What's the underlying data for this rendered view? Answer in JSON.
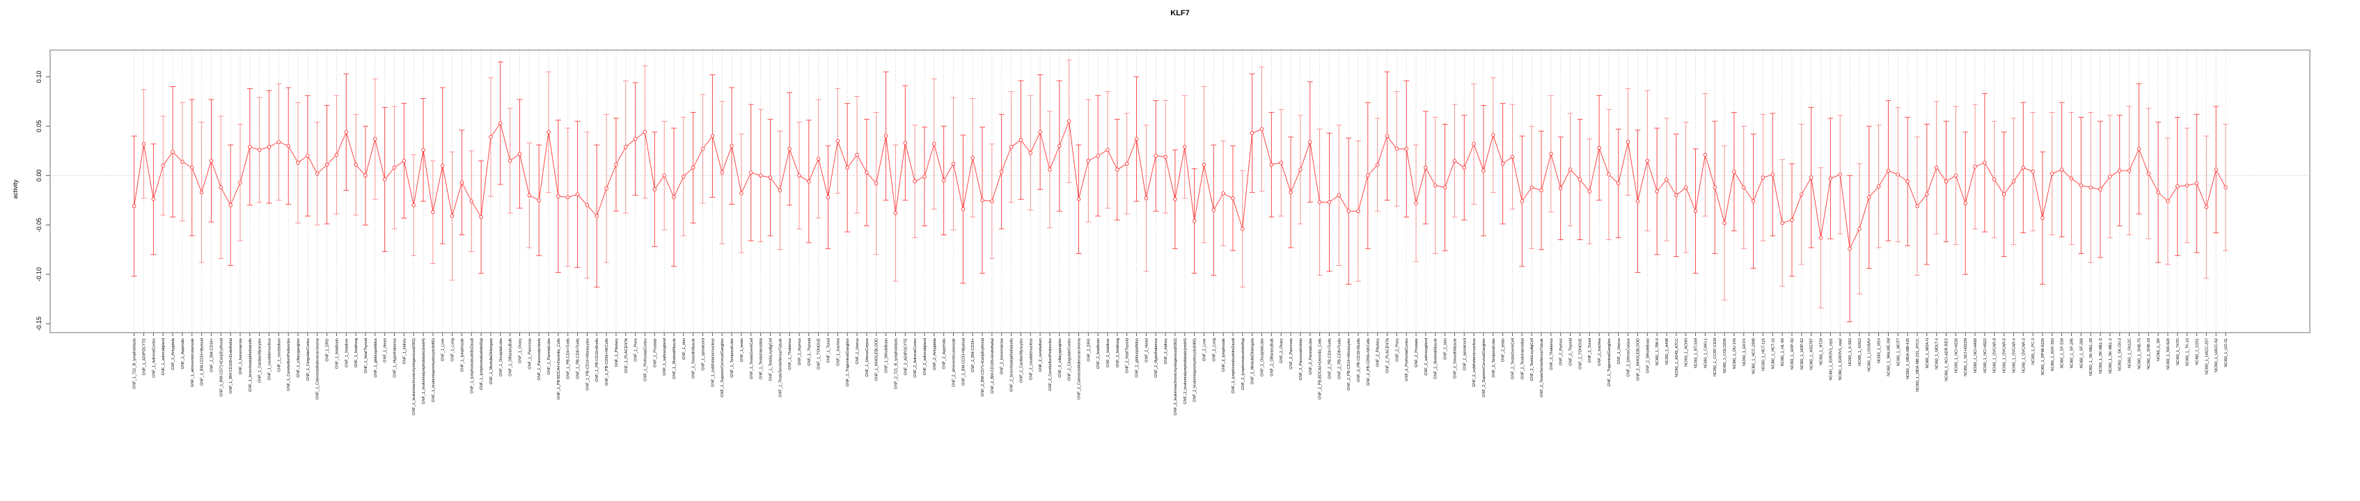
{
  "chart_data": {
    "type": "line",
    "title": "KLF7",
    "xlabel": "",
    "ylabel": "activity",
    "ylim": [
      -0.159,
      0.127
    ],
    "yticks": [
      "-0.15",
      "-0.10",
      "-0.05",
      "0.00",
      "0.05",
      "0.10"
    ],
    "ytick_values": [
      -0.15,
      -0.1,
      -0.05,
      0.0,
      0.05,
      0.1
    ],
    "grid": true,
    "color": "#ff3333",
    "categories": [
      "GNF_1_721_B_lymphoblasts",
      "GNF_1_ADIPOCYTE",
      "GNF_1_AdrenalCortex",
      "GNF_1_adrenalgland",
      "GNF_1_Amygdala",
      "GNF_1_Appendix",
      "GNF_1_atrioventricularnode",
      "GNF_1_BM-CD33+Myeloid",
      "GNF_1_BM-CD34+",
      "GNF_1_BM-CD71+EarlyErythroid",
      "GNF_1_BM-CD105+Endothelial",
      "GNF_1_bonemarrow",
      "GNF_1_bronchialepithelialcells",
      "GNF_1_CardiacMyocytes",
      "GNF_1_caudatenucleus",
      "GNF_1_cerebellum",
      "GNF_1_CerebellumPeduncles",
      "GNF_1_ciliaryganglion",
      "GNF_1_CingulateCortex",
      "GNF_1_ColorectalAdenocarcinoma",
      "GNF_1_DRG",
      "GNF_1_fetalbrain",
      "GNF_1_fetalliver",
      "GNF_1_fetallung",
      "GNF_1_fetalThyroid",
      "GNF_1_globuspallidus",
      "GNF_1_Heart",
      "GNF_1_Hypothalamus",
      "GNF_1_kidney",
      "GNF_1_leukemiachronicmyelogenous(k562)",
      "GNF_1_leukemialymphoblastic(molt4)",
      "GNF_1_leukemiapromyelocytic(hl60)",
      "GNF_1_Liver",
      "GNF_1_Lung",
      "GNF_1_lymphnode",
      "GNF_1_lymphomaburkittsDaudi",
      "GNF_1_lymphomaburkittsRaji",
      "GNF_1_MedullaOblongata",
      "GNF_1_OccipitalLobe",
      "GNF_1_OlfactoryBulb",
      "GNF_1_Ovary",
      "GNF_1_Pancreas",
      "GNF_1_PancreaticIslets",
      "GNF_1_ParietalLobe",
      "GNF_1_PB-BDCA4+Dentritic_Cells",
      "GNF_1_PB-CD4+Tcells",
      "GNF_1_PB-CD8+Tcells",
      "GNF_1_PB-CD14+Monocytes",
      "GNF_1_PB-CD19+Bcells",
      "GNF_1_PB-CD56+NKCells",
      "GNF_1_Pituitary",
      "GNF_1_PLACENTA",
      "GNF_1_Pons",
      "GNF_1_PrefrontalCortex",
      "GNF_1_Prostate",
      "GNF_1_salivarygland",
      "GNF_1_SkeletalMuscle",
      "GNF_1_skin",
      "GNF_1_SmoothMuscle",
      "GNF_1_spinalcord",
      "GNF_1_subthalamicnucleus",
      "GNF_1_SuperiorCervicalGanglion",
      "GNF_1_TemporalLobe",
      "GNF_1_testis",
      "GNF_1_TestisGermCell",
      "GNF_1_TestisInterstitial",
      "GNF_1_TestisLeydigCell",
      "GNF_1_TestisSeminiferousTubule",
      "GNF_1_Thalamus",
      "GNF_1_thymus",
      "GNF_1_Thyroid",
      "GNF_1_TONGUE",
      "GNF_1_Tonsil",
      "GNF_1_trachea",
      "GNF_1_TrigeminalGanglion",
      "GNF_1_Uterus",
      "GNF_1_UterusCorpus",
      "GNF_1_WHOLEBLOOD",
      "GNF_1_WholeBrain",
      "GNF_2_721_B_lymphoblasts",
      "GNF_2_ADIPOCYTE",
      "GNF_2_AdrenalCortex",
      "GNF_2_adrenalgland",
      "GNF_2_Amygdala",
      "GNF_2_Appendix",
      "GNF_2_atrioventricularnode",
      "GNF_2_BM-CD33+Myeloid",
      "GNF_2_BM-CD34+",
      "GNF_2_BM-CD71+EarlyErythroid",
      "GNF_2_BM-CD105+Endothelial",
      "GNF_2_bonemarrow",
      "GNF_2_bronchialepithelialcells",
      "GNF_2_CardiacMyocytes",
      "GNF_2_caudatenucleus",
      "GNF_2_cerebellum",
      "GNF_2_CerebellumPeduncles",
      "GNF_2_ciliaryganglion",
      "GNF_2_CingulateCortex",
      "GNF_2_ColorectalAdenocarcinoma",
      "GNF_2_DRG",
      "GNF_2_fetalbrain",
      "GNF_2_fetalliver",
      "GNF_2_fetallung",
      "GNF_2_fetalThyroid",
      "GNF_2_globuspallidus",
      "GNF_2_Heart",
      "GNF_2_Hypothalamus",
      "GNF_2_kidney",
      "GNF_2_leukemiachronicmyelogenous(k562)",
      "GNF_2_leukemialymphoblastic(molt4)",
      "GNF_2_leukemiapromyelocytic(hl60)",
      "GNF_2_Liver",
      "GNF_2_Lung",
      "GNF_2_lymphnode",
      "GNF_2_lymphomaburkittsDaudi",
      "GNF_2_lymphomaburkittsRaji",
      "GNF_2_MedullaOblongata",
      "GNF_2_OccipitalLobe",
      "GNF_2_OlfactoryBulb",
      "GNF_2_Ovary",
      "GNF_2_Pancreas",
      "GNF_2_PancreaticIslets",
      "GNF_2_ParietalLobe",
      "GNF_2_PB-BDCA4+Dentritic_Cells",
      "GNF_2_PB-CD4+Tcells",
      "GNF_2_PB-CD8+Tcells",
      "GNF_2_PB-CD14+Monocytes",
      "GNF_2_PB-CD19+Bcells",
      "GNF_2_PB-CD56+NKCells",
      "GNF_2_Pituitary",
      "GNF_2_PLACENTA",
      "GNF_2_Pons",
      "GNF_2_PrefrontalCortex",
      "GNF_2_Prostate",
      "GNF_2_salivarygland",
      "GNF_2_SkeletalMuscle",
      "GNF_2_skin",
      "GNF_2_SmoothMuscle",
      "GNF_2_spinalcord",
      "GNF_2_subthalamicnucleus",
      "GNF_2_SuperiorCervicalGanglion",
      "GNF_2_TemporalLobe",
      "GNF_2_testis",
      "GNF_2_TestisGermCell",
      "GNF_2_TestisInterstitial",
      "GNF_2_TestisLeydigCell",
      "GNF_2_TestisSeminiferousTubule",
      "GNF_2_Thalamus",
      "GNF_2_thymus",
      "GNF_2_Thyroid",
      "GNF_2_TONGUE",
      "GNF_2_Tonsil",
      "GNF_2_trachea",
      "GNF_2_TrigeminalGanglion",
      "GNF_2_Uterus",
      "GNF_2_UterusCorpus",
      "GNF_2_WHOLEBLOOD",
      "GNF_2_WholeBrain",
      "NCI60_1_786-0",
      "NCI60_1_A498",
      "NCI60_1_A549_ATCC",
      "NCI60_1_ACHN",
      "NCI60_1_BT-549",
      "NCI60_1_CAKI-1",
      "NCI60_1_CCRF-CEM",
      "NCI60_1_COLO205",
      "NCI60_1_DU-145",
      "NCI60_1_EKVX",
      "NCI60_1_HCC-2998",
      "NCI60_1_HCT-116",
      "NCI60_1_HCT-15",
      "NCI60_1_HL-60",
      "NCI60_1_HOP-92",
      "NCI60_1_HOP-62",
      "NCI60_1_HS578T",
      "NCI60_1_HT29",
      "NCI60_1_IGROV1_rep1",
      "NCI60_1_IGROV1_rep2",
      "NCI60_1_K-562",
      "NCI60_1_KM12",
      "NCI60_1_LOXIMVI",
      "NCI60_1_M14",
      "NCI60_1_MALME-3M",
      "NCI60_1_MCF7",
      "NCI60_1_MDA-MB-435",
      "NCI60_1_MDA-MB-231_ATCC",
      "NCI60_1_MDA-N",
      "NCI60_1_MOLT-4",
      "NCI60_1_NCI-ADR-RES",
      "NCI60_1_NCI-H226",
      "NCI60_1_NCI-H322M",
      "NCI60_1_NCI-H460",
      "NCI60_1_NCI-H522",
      "NCI60_1_OVCAR-8",
      "NCI60_1_OVCAR-5",
      "NCI60_1_OVCAR-4",
      "NCI60_1_OVCAR-3",
      "NCI60_1_PC-3",
      "NCI60_1_RPMI-8226",
      "NCI60_1_RXF-393",
      "NCI60_1_SF-539",
      "NCI60_1_SF-295",
      "NCI60_1_SF-268",
      "NCI60_1_SK-MEL-28",
      "NCI60_1_SK-MEL-5",
      "NCI60_1_SK-MEL-2",
      "NCI60_1_SK-OV-3",
      "NCI60_1_SN12C",
      "NCI60_1_SNB-75",
      "NCI60_1_SNB-19",
      "NCI60_1_SR",
      "NCI60_1_SW-620",
      "NCI60_1_T47D",
      "NCI60_1_TK-10",
      "NCI60_1_U251",
      "NCI60_1_UACC-257",
      "NCI60_1_UACC-62",
      "NCI60_1_UO-31"
    ],
    "series": [
      {
        "name": "activity",
        "values": [
          -0.031,
          0.032,
          -0.024,
          0.01,
          0.024,
          0.014,
          0.008,
          -0.017,
          0.015,
          -0.012,
          -0.03,
          -0.007,
          0.029,
          0.026,
          0.029,
          0.034,
          0.03,
          0.013,
          0.02,
          0.002,
          0.011,
          0.021,
          0.044,
          0.011,
          0.0,
          0.037,
          -0.004,
          0.008,
          0.015,
          -0.03,
          0.026,
          -0.037,
          0.01,
          -0.041,
          -0.007,
          -0.026,
          -0.042,
          0.039,
          0.053,
          0.015,
          0.022,
          -0.02,
          -0.025,
          0.044,
          -0.021,
          -0.022,
          -0.019,
          -0.03,
          -0.041,
          -0.013,
          0.011,
          0.029,
          0.037,
          0.044,
          -0.014,
          0.0,
          -0.022,
          -0.001,
          0.008,
          0.027,
          0.04,
          0.003,
          0.03,
          -0.018,
          0.003,
          0.0,
          -0.002,
          -0.015,
          0.027,
          0.0,
          -0.006,
          0.017,
          -0.022,
          0.035,
          0.008,
          0.021,
          0.003,
          -0.008,
          0.04,
          -0.038,
          0.033,
          -0.006,
          -0.001,
          0.032,
          -0.005,
          0.012,
          -0.034,
          0.018,
          -0.025,
          -0.026,
          0.004,
          0.029,
          0.036,
          0.023,
          0.044,
          0.006,
          0.03,
          0.055,
          -0.024,
          0.015,
          0.02,
          0.026,
          0.006,
          0.012,
          0.037,
          -0.023,
          0.02,
          0.019,
          -0.024,
          0.029,
          -0.046,
          0.011,
          -0.035,
          -0.018,
          -0.023,
          -0.054,
          0.043,
          0.047,
          0.011,
          0.013,
          -0.017,
          0.006,
          0.034,
          -0.027,
          -0.027,
          -0.02,
          -0.036,
          -0.036,
          0.0,
          0.011,
          0.04,
          0.027,
          0.027,
          -0.028,
          0.008,
          -0.01,
          -0.012,
          0.015,
          0.008,
          0.032,
          0.005,
          0.041,
          0.012,
          0.019,
          -0.026,
          -0.012,
          -0.015,
          0.022,
          -0.013,
          0.006,
          -0.004,
          -0.016,
          0.028,
          0.001,
          -0.008,
          0.034,
          -0.026,
          0.015,
          -0.016,
          -0.004,
          -0.02,
          -0.012,
          -0.036,
          0.021,
          -0.012,
          -0.048,
          0.004,
          -0.012,
          -0.026,
          -0.002,
          0.001,
          -0.048,
          -0.045,
          -0.019,
          -0.002,
          -0.063,
          -0.003,
          0.001,
          -0.074,
          -0.054,
          -0.022,
          -0.011,
          0.005,
          0.001,
          -0.006,
          -0.031,
          -0.019,
          0.008,
          -0.006,
          0.0,
          -0.028,
          0.009,
          0.013,
          -0.004,
          -0.019,
          -0.006,
          0.008,
          0.004,
          -0.043,
          0.002,
          0.006,
          -0.003,
          -0.01,
          -0.012,
          -0.014,
          -0.001,
          0.005,
          0.005,
          0.027,
          0.002,
          -0.017,
          -0.026,
          -0.011,
          -0.01,
          -0.008,
          -0.032,
          0.006,
          -0.012
        ],
        "error": [
          0.071,
          0.055,
          0.056,
          0.05,
          0.066,
          0.06,
          0.069,
          0.071,
          0.062,
          0.072,
          0.061,
          0.059,
          0.059,
          0.053,
          0.057,
          0.059,
          0.059,
          0.061,
          0.061,
          0.052,
          0.06,
          0.06,
          0.059,
          0.051,
          0.05,
          0.061,
          0.073,
          0.062,
          0.058,
          0.051,
          0.052,
          0.052,
          0.079,
          0.065,
          0.053,
          0.051,
          0.057,
          0.06,
          0.062,
          0.053,
          0.055,
          0.053,
          0.056,
          0.061,
          0.077,
          0.07,
          0.074,
          0.074,
          0.072,
          0.075,
          0.047,
          0.067,
          0.057,
          0.067,
          0.058,
          0.055,
          0.07,
          0.06,
          0.056,
          0.055,
          0.062,
          0.072,
          0.059,
          0.06,
          0.069,
          0.067,
          0.059,
          0.06,
          0.057,
          0.054,
          0.062,
          0.06,
          0.052,
          0.053,
          0.065,
          0.059,
          0.054,
          0.072,
          0.065,
          0.069,
          0.058,
          0.057,
          0.05,
          0.066,
          0.055,
          0.067,
          0.075,
          0.06,
          0.074,
          0.058,
          0.058,
          0.056,
          0.06,
          0.058,
          0.058,
          0.059,
          0.066,
          0.062,
          0.055,
          0.062,
          0.061,
          0.059,
          0.051,
          0.051,
          0.063,
          0.074,
          0.056,
          0.057,
          0.05,
          0.052,
          0.053,
          0.079,
          0.066,
          0.053,
          0.053,
          0.059,
          0.06,
          0.063,
          0.053,
          0.054,
          0.056,
          0.055,
          0.061,
          0.074,
          0.07,
          0.071,
          0.074,
          0.071,
          0.074,
          0.047,
          0.065,
          0.058,
          0.069,
          0.059,
          0.057,
          0.069,
          0.064,
          0.057,
          0.053,
          0.061,
          0.066,
          0.058,
          0.061,
          0.053,
          0.066,
          0.062,
          0.06,
          0.059,
          0.052,
          0.057,
          0.061,
          0.053,
          0.053,
          0.066,
          0.055,
          0.054,
          0.072,
          0.071,
          0.064,
          0.062,
          0.062,
          0.066,
          0.063,
          0.062,
          0.067,
          0.078,
          0.06,
          0.062,
          0.068,
          0.064,
          0.062,
          0.064,
          0.057,
          0.071,
          0.071,
          0.071,
          0.061,
          0.06,
          0.074,
          0.066,
          0.072,
          0.062,
          0.071,
          0.068,
          0.065,
          0.07,
          0.071,
          0.067,
          0.061,
          0.07,
          0.072,
          0.063,
          0.07,
          0.059,
          0.063,
          0.064,
          0.066,
          0.06,
          0.067,
          0.062,
          0.068,
          0.067,
          0.069,
          0.076,
          0.069,
          0.062,
          0.056,
          0.065,
          0.066,
          0.066,
          0.071,
          0.064,
          0.07,
          0.058,
          0.07,
          0.072,
          0.064,
          0.064
        ]
      }
    ]
  }
}
